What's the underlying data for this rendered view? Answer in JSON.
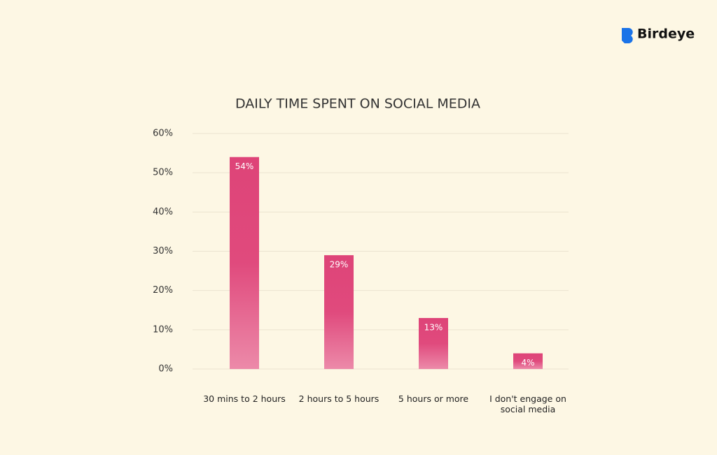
{
  "brand": "Birdeye",
  "chart_data": {
    "type": "bar",
    "title": "DAILY TIME SPENT ON SOCIAL MEDIA",
    "categories": [
      "30 mins to 2 hours",
      "2 hours to 5 hours",
      "5 hours or more",
      "I don't engage on social media"
    ],
    "values": [
      54,
      29,
      13,
      4
    ],
    "value_labels": [
      "54%",
      "29%",
      "13%",
      "4%"
    ],
    "color": "#df477a",
    "ylim": [
      0,
      60
    ],
    "yticks": [
      {
        "value": 0,
        "label": "0%"
      },
      {
        "value": 10,
        "label": "10%"
      },
      {
        "value": 20,
        "label": "20%"
      },
      {
        "value": 30,
        "label": "30%"
      },
      {
        "value": 40,
        "label": "40%"
      },
      {
        "value": 50,
        "label": "50%"
      },
      {
        "value": 60,
        "label": "60%"
      }
    ],
    "grid": true
  }
}
